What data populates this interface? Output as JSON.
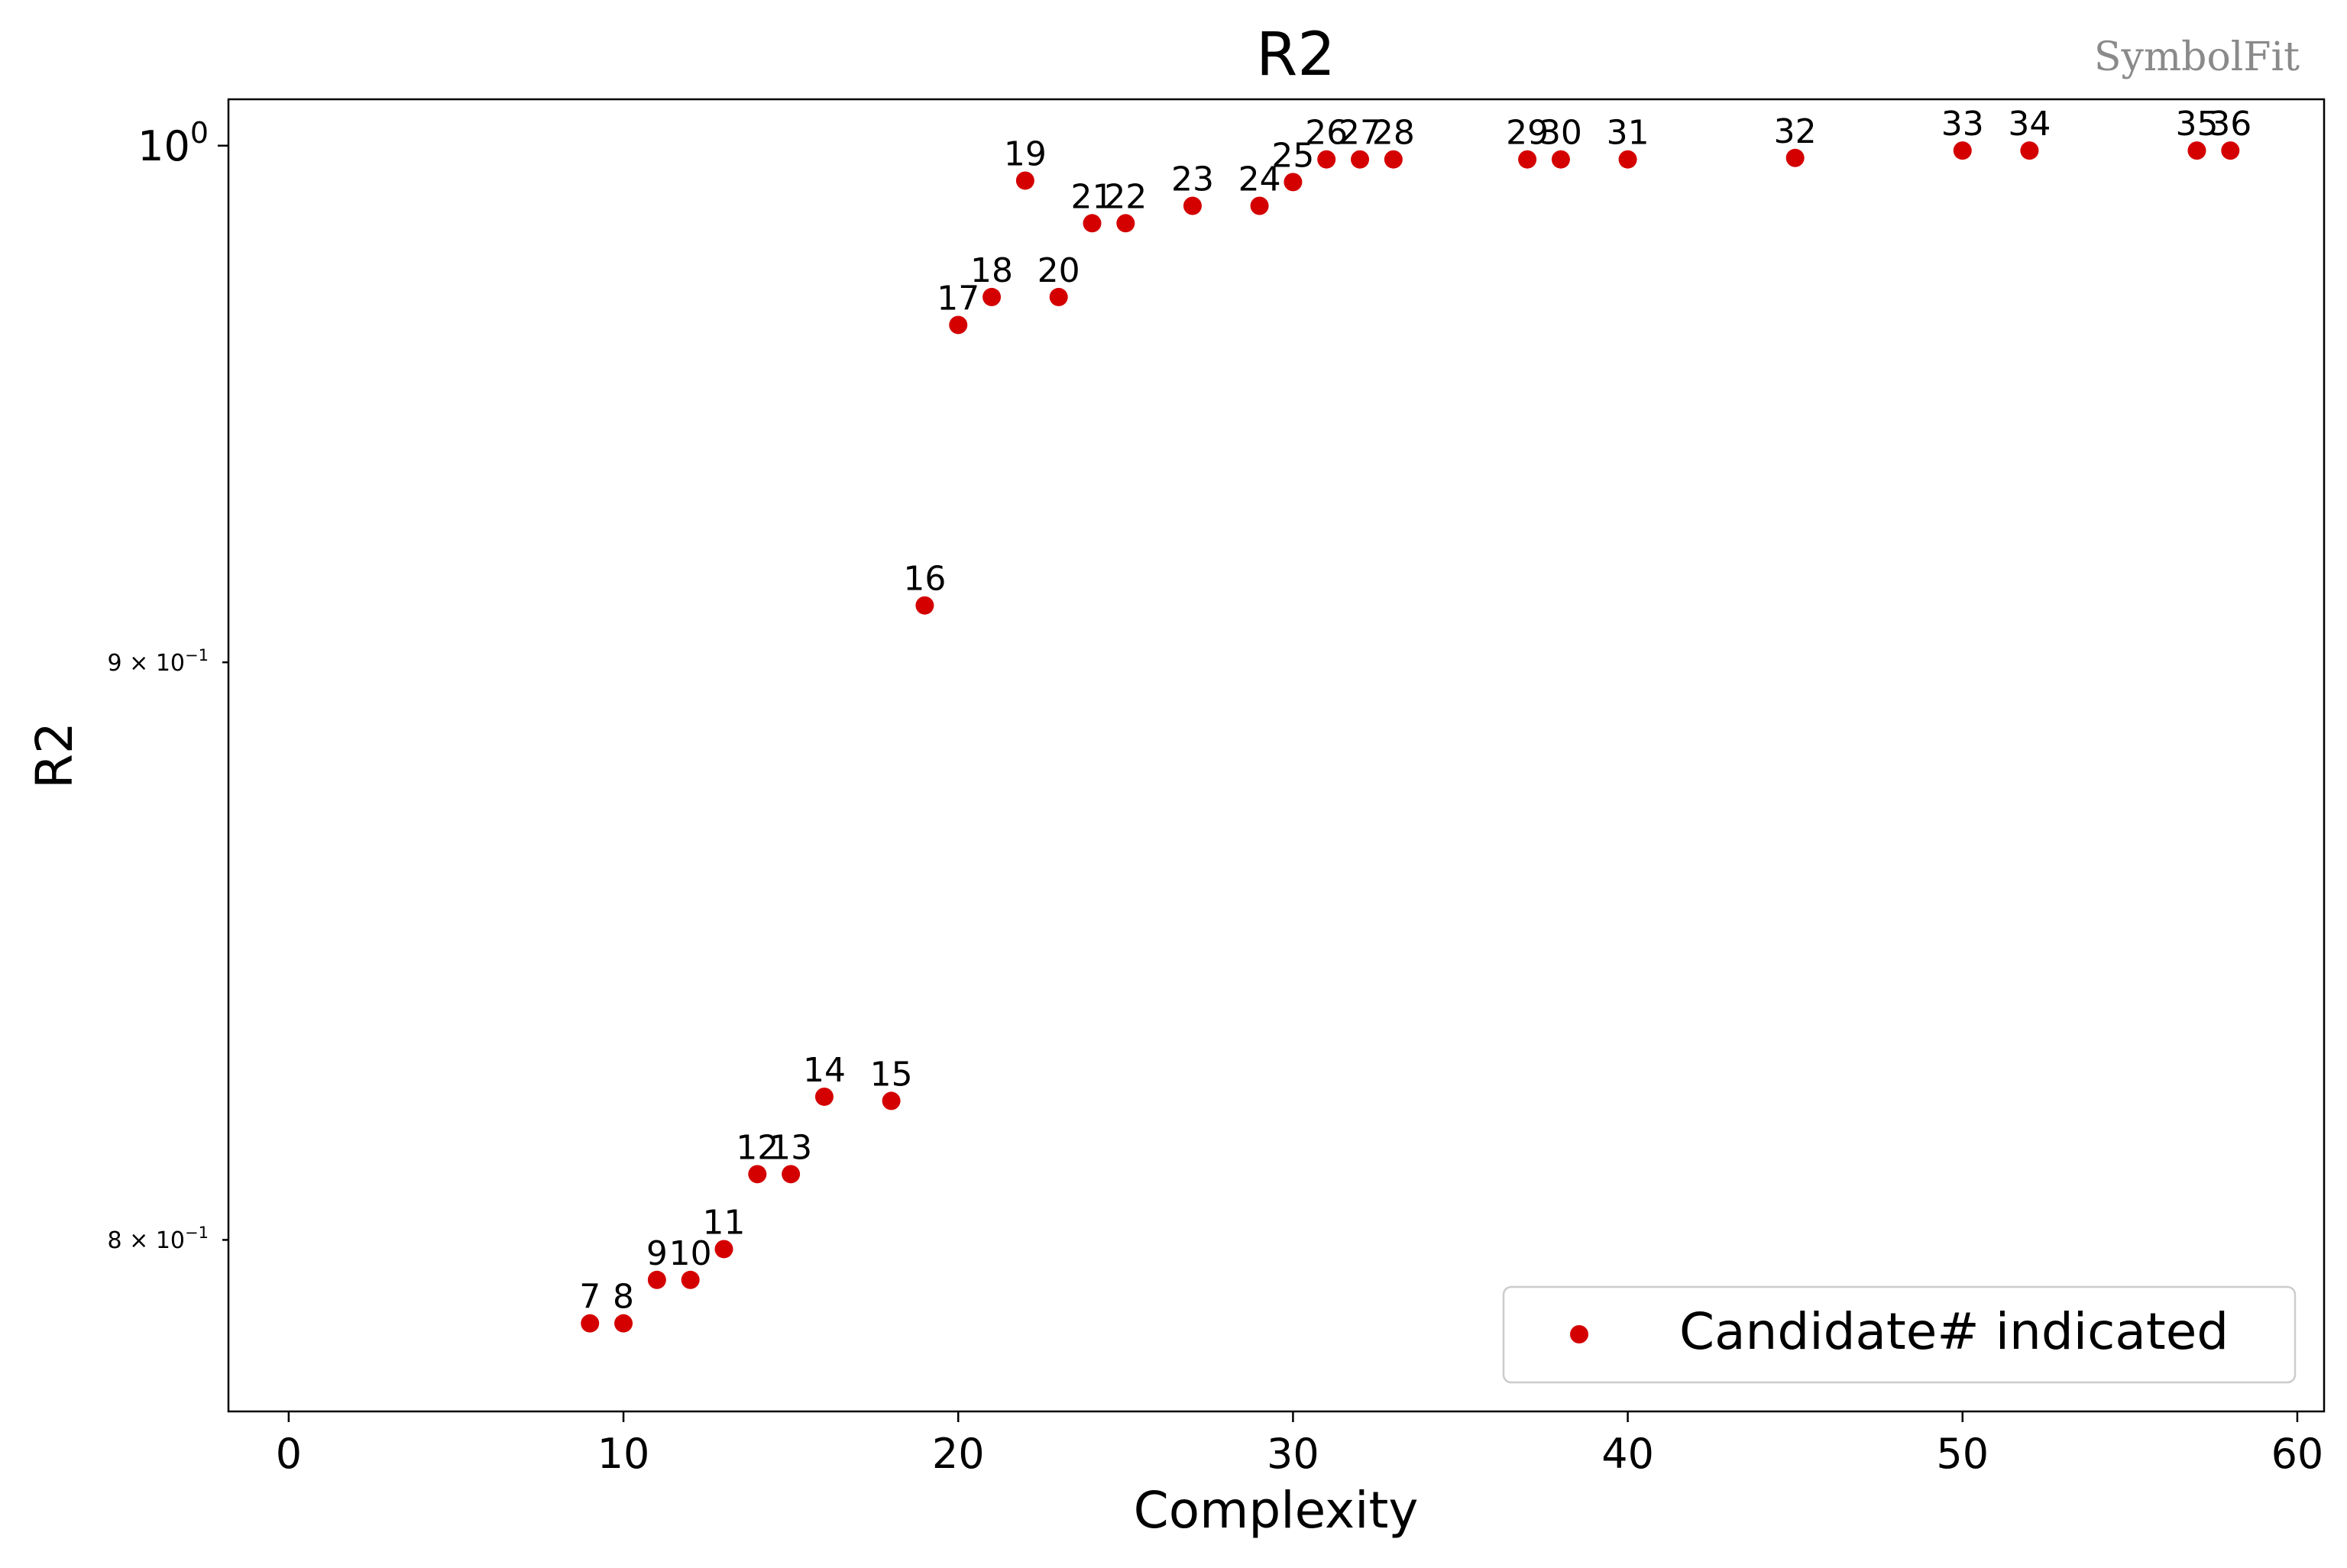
{
  "watermark": "SymbolFit",
  "chart_data": {
    "type": "scatter",
    "title": "R2",
    "xlabel": "Complexity",
    "ylabel": "R2",
    "xlim": [
      -1.8,
      60.8
    ],
    "ylim": [
      0.7725,
      1.0095
    ],
    "yscale": "log",
    "x_ticks": [
      0,
      10,
      20,
      30,
      40,
      50,
      60
    ],
    "x_tick_labels": [
      "0",
      "10",
      "20",
      "30",
      "40",
      "50",
      "60"
    ],
    "y_ticks": [
      {
        "value": 1.0,
        "base": "10",
        "exp": "0",
        "major": true
      },
      {
        "value": 0.9,
        "base": "9 × 10",
        "exp": "−1",
        "major": false
      },
      {
        "value": 0.8,
        "base": "8 × 10",
        "exp": "−1",
        "major": false
      }
    ],
    "grid": false,
    "legend": {
      "label": "Candidate# indicated",
      "position": "lower-right"
    },
    "marker_color": "#d40000",
    "series": [
      {
        "name": "Candidate# indicated",
        "points": [
          {
            "label": "7",
            "x": 9,
            "y": 0.7865
          },
          {
            "label": "8",
            "x": 10,
            "y": 0.7865
          },
          {
            "label": "9",
            "x": 11,
            "y": 0.7935
          },
          {
            "label": "10",
            "x": 12,
            "y": 0.7935
          },
          {
            "label": "11",
            "x": 13,
            "y": 0.7985
          },
          {
            "label": "12",
            "x": 14,
            "y": 0.8108
          },
          {
            "label": "13",
            "x": 15,
            "y": 0.8108
          },
          {
            "label": "14",
            "x": 16,
            "y": 0.8237
          },
          {
            "label": "15",
            "x": 18,
            "y": 0.823
          },
          {
            "label": "16",
            "x": 19,
            "y": 0.9105
          },
          {
            "label": "17",
            "x": 20,
            "y": 0.9641
          },
          {
            "label": "18",
            "x": 21,
            "y": 0.9696
          },
          {
            "label": "19",
            "x": 22,
            "y": 0.9929
          },
          {
            "label": "20",
            "x": 23,
            "y": 0.9696
          },
          {
            "label": "21",
            "x": 24,
            "y": 0.9843
          },
          {
            "label": "22",
            "x": 25,
            "y": 0.9843
          },
          {
            "label": "23",
            "x": 27,
            "y": 0.9878
          },
          {
            "label": "24",
            "x": 29,
            "y": 0.9878
          },
          {
            "label": "25",
            "x": 30,
            "y": 0.9926
          },
          {
            "label": "26",
            "x": 31,
            "y": 0.9972
          },
          {
            "label": "27",
            "x": 32,
            "y": 0.9972
          },
          {
            "label": "28",
            "x": 33,
            "y": 0.9972
          },
          {
            "label": "29",
            "x": 37,
            "y": 0.9972
          },
          {
            "label": "30",
            "x": 38,
            "y": 0.9972
          },
          {
            "label": "31",
            "x": 40,
            "y": 0.9972
          },
          {
            "label": "32",
            "x": 45,
            "y": 0.9975
          },
          {
            "label": "33",
            "x": 50,
            "y": 0.999
          },
          {
            "label": "34",
            "x": 52,
            "y": 0.999
          },
          {
            "label": "35",
            "x": 57,
            "y": 0.999
          },
          {
            "label": "36",
            "x": 58,
            "y": 0.999
          }
        ]
      }
    ]
  }
}
